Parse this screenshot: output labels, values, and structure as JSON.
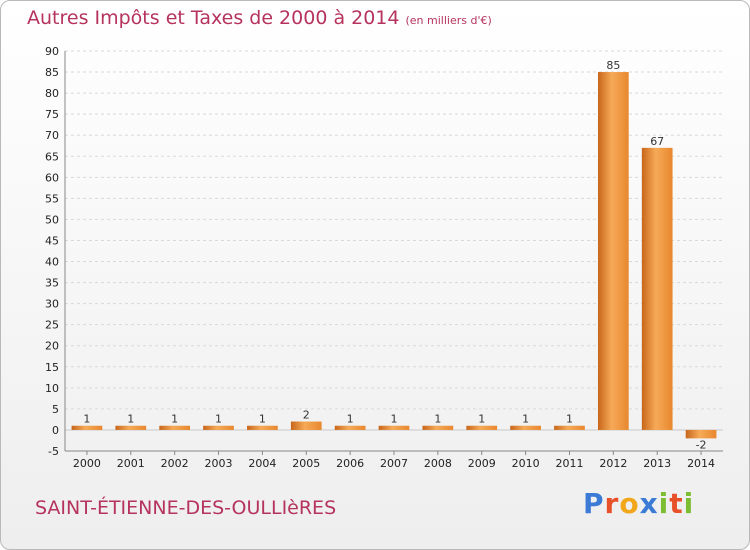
{
  "title": "Autres Impôts et Taxes de 2000 à 2014",
  "unit_label": "(en milliers d'€)",
  "place": "SAINT-ÉTIENNE-DES-OULLIèRES",
  "logo": {
    "letters": [
      "P",
      "r",
      "o",
      "x",
      "i",
      "t",
      "i"
    ],
    "colors": [
      "#3b7bd6",
      "#e8502a",
      "#f2a71b",
      "#3b7bd6",
      "#7cbd32",
      "#e8502a",
      "#7cbd32"
    ]
  },
  "colors": {
    "bar": "#e8872e",
    "bar_dark": "#c8661a",
    "bar_light": "#f6aa58",
    "title": "#b5335d"
  },
  "chart_data": {
    "type": "bar",
    "categories": [
      "2000",
      "2001",
      "2002",
      "2003",
      "2004",
      "2005",
      "2006",
      "2007",
      "2008",
      "2009",
      "2010",
      "2011",
      "2012",
      "2013",
      "2014"
    ],
    "values": [
      1,
      1,
      1,
      1,
      1,
      2,
      1,
      1,
      1,
      1,
      1,
      1,
      85,
      67,
      -2
    ],
    "data_labels": [
      "1",
      "1",
      "1",
      "1",
      "1",
      "2",
      "1",
      "1",
      "1",
      "1",
      "1",
      "1",
      "85",
      "67",
      "-2"
    ],
    "yticks": [
      "-5",
      "0",
      "5",
      "10",
      "15",
      "20",
      "25",
      "30",
      "35",
      "40",
      "45",
      "50",
      "55",
      "60",
      "65",
      "70",
      "75",
      "80",
      "85",
      "90"
    ],
    "ylim": [
      -5,
      90
    ],
    "grid": true
  }
}
